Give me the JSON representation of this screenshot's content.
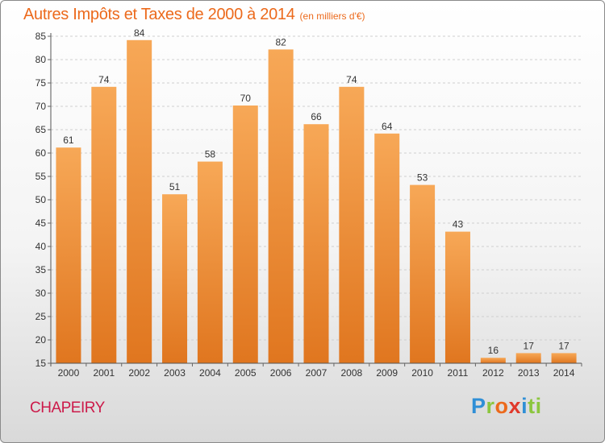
{
  "header": {
    "title": "Autres Impôts et Taxes de 2000 à 2014",
    "unit": "(en milliers d'€)"
  },
  "footer": {
    "commune": "CHAPEIRY",
    "logo_parts": [
      "P",
      "r",
      "o",
      "x",
      "i",
      "ti"
    ]
  },
  "colors": {
    "bar_top": "#f7a857",
    "bar_bottom": "#e0761f",
    "title": "#ec6a1c",
    "commune": "#cc1a4a"
  },
  "chart_data": {
    "type": "bar",
    "categories": [
      "2000",
      "2001",
      "2002",
      "2003",
      "2004",
      "2005",
      "2006",
      "2007",
      "2008",
      "2009",
      "2010",
      "2011",
      "2012",
      "2013",
      "2014"
    ],
    "values": [
      61,
      74,
      84,
      51,
      58,
      70,
      82,
      66,
      74,
      64,
      53,
      43,
      16,
      17,
      17
    ],
    "ylim": [
      15,
      85
    ],
    "yticks": [
      15,
      20,
      25,
      30,
      35,
      40,
      45,
      50,
      55,
      60,
      65,
      70,
      75,
      80,
      85
    ],
    "grid": true,
    "legend": "none"
  }
}
